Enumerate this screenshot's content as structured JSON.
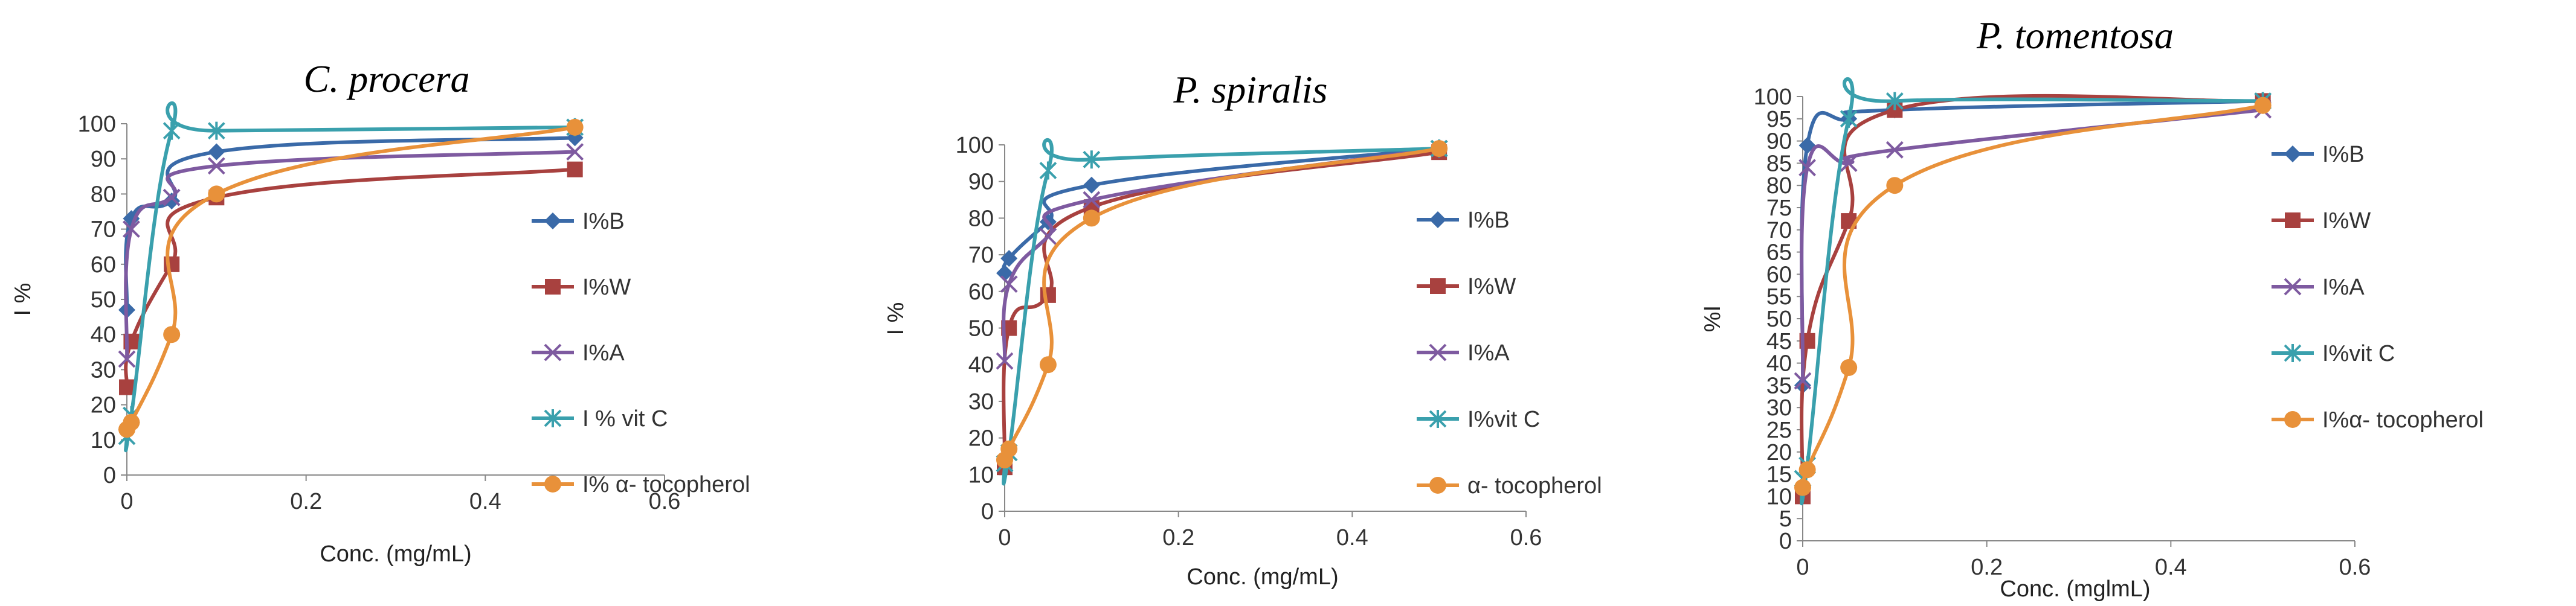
{
  "chart_data": [
    {
      "type": "line",
      "title": "C. procera",
      "xlabel": "Conc. (mg/mL)",
      "ylabel": "I %",
      "xlim": [
        0,
        0.6
      ],
      "ylim": [
        0,
        100
      ],
      "xticks": [
        "0",
        "0.2",
        "0.4",
        "0.6"
      ],
      "yticks": [
        "0",
        "10",
        "20",
        "30",
        "40",
        "50",
        "60",
        "70",
        "80",
        "90",
        "100"
      ],
      "legend_position": "right",
      "series": [
        {
          "name": "I%B",
          "color": "#3a6aa8",
          "marker": "diamond",
          "x": [
            0,
            0.005,
            0.05,
            0.1,
            0.5
          ],
          "y": [
            47,
            73,
            78,
            92,
            96
          ]
        },
        {
          "name": "I%W",
          "color": "#a8413f",
          "marker": "square",
          "x": [
            0,
            0.005,
            0.05,
            0.1,
            0.5
          ],
          "y": [
            25,
            38,
            60,
            79,
            87
          ]
        },
        {
          "name": "I%A",
          "color": "#7e5aa0",
          "marker": "x",
          "x": [
            0,
            0.005,
            0.05,
            0.1,
            0.5
          ],
          "y": [
            33,
            70,
            79,
            88,
            92
          ]
        },
        {
          "name": "I % vit C",
          "color": "#3aa0ad",
          "marker": "asterisk",
          "x": [
            0,
            0.005,
            0.05,
            0.1,
            0.5
          ],
          "y": [
            11,
            17,
            98,
            98,
            99
          ]
        },
        {
          "name": "I% α- tocopherol",
          "color": "#e8913a",
          "marker": "circle",
          "x": [
            0,
            0.005,
            0.05,
            0.1,
            0.5
          ],
          "y": [
            13,
            15,
            40,
            80,
            99
          ]
        }
      ]
    },
    {
      "type": "line",
      "title": "P. spiralis",
      "xlabel": "Conc. (mg/mL)",
      "ylabel": "I %",
      "xlim": [
        0,
        0.6
      ],
      "ylim": [
        0,
        100
      ],
      "xticks": [
        "0",
        "0.2",
        "0.4",
        "0.6"
      ],
      "yticks": [
        "0",
        "10",
        "20",
        "30",
        "40",
        "50",
        "60",
        "70",
        "80",
        "90",
        "100"
      ],
      "legend_position": "right",
      "series": [
        {
          "name": "I%B",
          "color": "#3a6aa8",
          "marker": "diamond",
          "x": [
            0,
            0.005,
            0.05,
            0.1,
            0.5
          ],
          "y": [
            65,
            69,
            79,
            89,
            99
          ]
        },
        {
          "name": "I%W",
          "color": "#a8413f",
          "marker": "square",
          "x": [
            0,
            0.005,
            0.05,
            0.1,
            0.5
          ],
          "y": [
            12,
            50,
            59,
            83,
            98
          ]
        },
        {
          "name": "I%A",
          "color": "#7e5aa0",
          "marker": "x",
          "x": [
            0,
            0.005,
            0.05,
            0.1,
            0.5
          ],
          "y": [
            41,
            62,
            75,
            85,
            99
          ]
        },
        {
          "name": "I%vit C",
          "color": "#3aa0ad",
          "marker": "asterisk",
          "x": [
            0,
            0.005,
            0.05,
            0.1,
            0.5
          ],
          "y": [
            13,
            16,
            93,
            96,
            99
          ]
        },
        {
          "name": "α- tocopherol",
          "color": "#e8913a",
          "marker": "circle",
          "x": [
            0,
            0.005,
            0.05,
            0.1,
            0.5
          ],
          "y": [
            14,
            17,
            40,
            80,
            99
          ]
        }
      ]
    },
    {
      "type": "line",
      "title": "P. tomentosa",
      "xlabel": "Conc. (mglmL)",
      "ylabel": "%I",
      "xlim": [
        0,
        0.6
      ],
      "ylim": [
        0,
        100
      ],
      "xticks": [
        "0",
        "0.2",
        "0.4",
        "0.6"
      ],
      "yticks": [
        "0",
        "5",
        "10",
        "15",
        "20",
        "25",
        "30",
        "35",
        "40",
        "45",
        "50",
        "55",
        "60",
        "65",
        "70",
        "75",
        "80",
        "85",
        "90",
        "95",
        "100"
      ],
      "legend_position": "right",
      "series": [
        {
          "name": "I%B",
          "color": "#3a6aa8",
          "marker": "diamond",
          "x": [
            0,
            0.005,
            0.05,
            0.1,
            0.5
          ],
          "y": [
            35,
            89,
            95,
            97,
            99
          ]
        },
        {
          "name": "I%W",
          "color": "#a8413f",
          "marker": "square",
          "x": [
            0,
            0.005,
            0.05,
            0.1,
            0.5
          ],
          "y": [
            10,
            45,
            72,
            97,
            99
          ]
        },
        {
          "name": "I%A",
          "color": "#7e5aa0",
          "marker": "x",
          "x": [
            0,
            0.005,
            0.05,
            0.1,
            0.5
          ],
          "y": [
            36,
            84,
            85,
            88,
            97
          ]
        },
        {
          "name": "I%vit C",
          "color": "#3aa0ad",
          "marker": "asterisk",
          "x": [
            0,
            0.005,
            0.05,
            0.1,
            0.5
          ],
          "y": [
            14,
            17,
            95,
            99,
            99
          ]
        },
        {
          "name": "I%α- tocopherol",
          "color": "#e8913a",
          "marker": "circle",
          "x": [
            0,
            0.005,
            0.05,
            0.1,
            0.5
          ],
          "y": [
            12,
            16,
            39,
            80,
            98
          ]
        }
      ]
    }
  ]
}
